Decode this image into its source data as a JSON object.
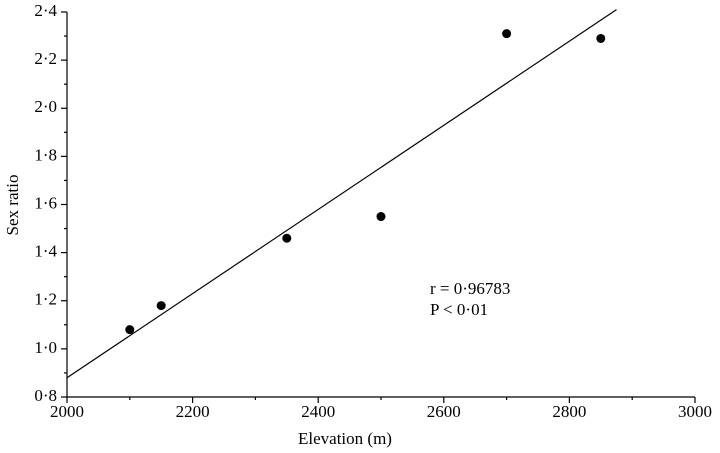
{
  "chart_data": {
    "type": "scatter",
    "xlabel": "Elevation (m)",
    "ylabel": "Sex ratio",
    "x": [
      2100,
      2150,
      2350,
      2500,
      2700,
      2850
    ],
    "values": [
      1.08,
      1.18,
      1.46,
      1.55,
      2.31,
      2.29
    ],
    "color": "#000000",
    "fit_line": {
      "x": [
        2000,
        2875
      ],
      "y": [
        0.88,
        2.41
      ]
    },
    "annotations": [
      "r = 0·96783",
      "P < 0·01"
    ],
    "xlim": [
      2000,
      3000
    ],
    "xticks": [
      2000,
      2200,
      2400,
      2600,
      2800,
      3000
    ],
    "xminorticks": [
      2100,
      2300,
      2500,
      2700,
      2900
    ],
    "ylim": [
      0.8,
      2.4
    ],
    "yticks": [
      {
        "value": 0.8,
        "label": "0·8"
      },
      {
        "value": 1.0,
        "label": "1·0"
      },
      {
        "value": 1.2,
        "label": "1·2"
      },
      {
        "value": 1.4,
        "label": "1·4"
      },
      {
        "value": 1.6,
        "label": "1·6"
      },
      {
        "value": 1.8,
        "label": "1·8"
      },
      {
        "value": 2.0,
        "label": "2·0"
      },
      {
        "value": 2.2,
        "label": "2·2"
      },
      {
        "value": 2.4,
        "label": "2·4"
      }
    ],
    "yminorticks": [
      0.9,
      1.1,
      1.3,
      1.5,
      1.7,
      1.9,
      2.1,
      2.3
    ],
    "grid": false
  }
}
